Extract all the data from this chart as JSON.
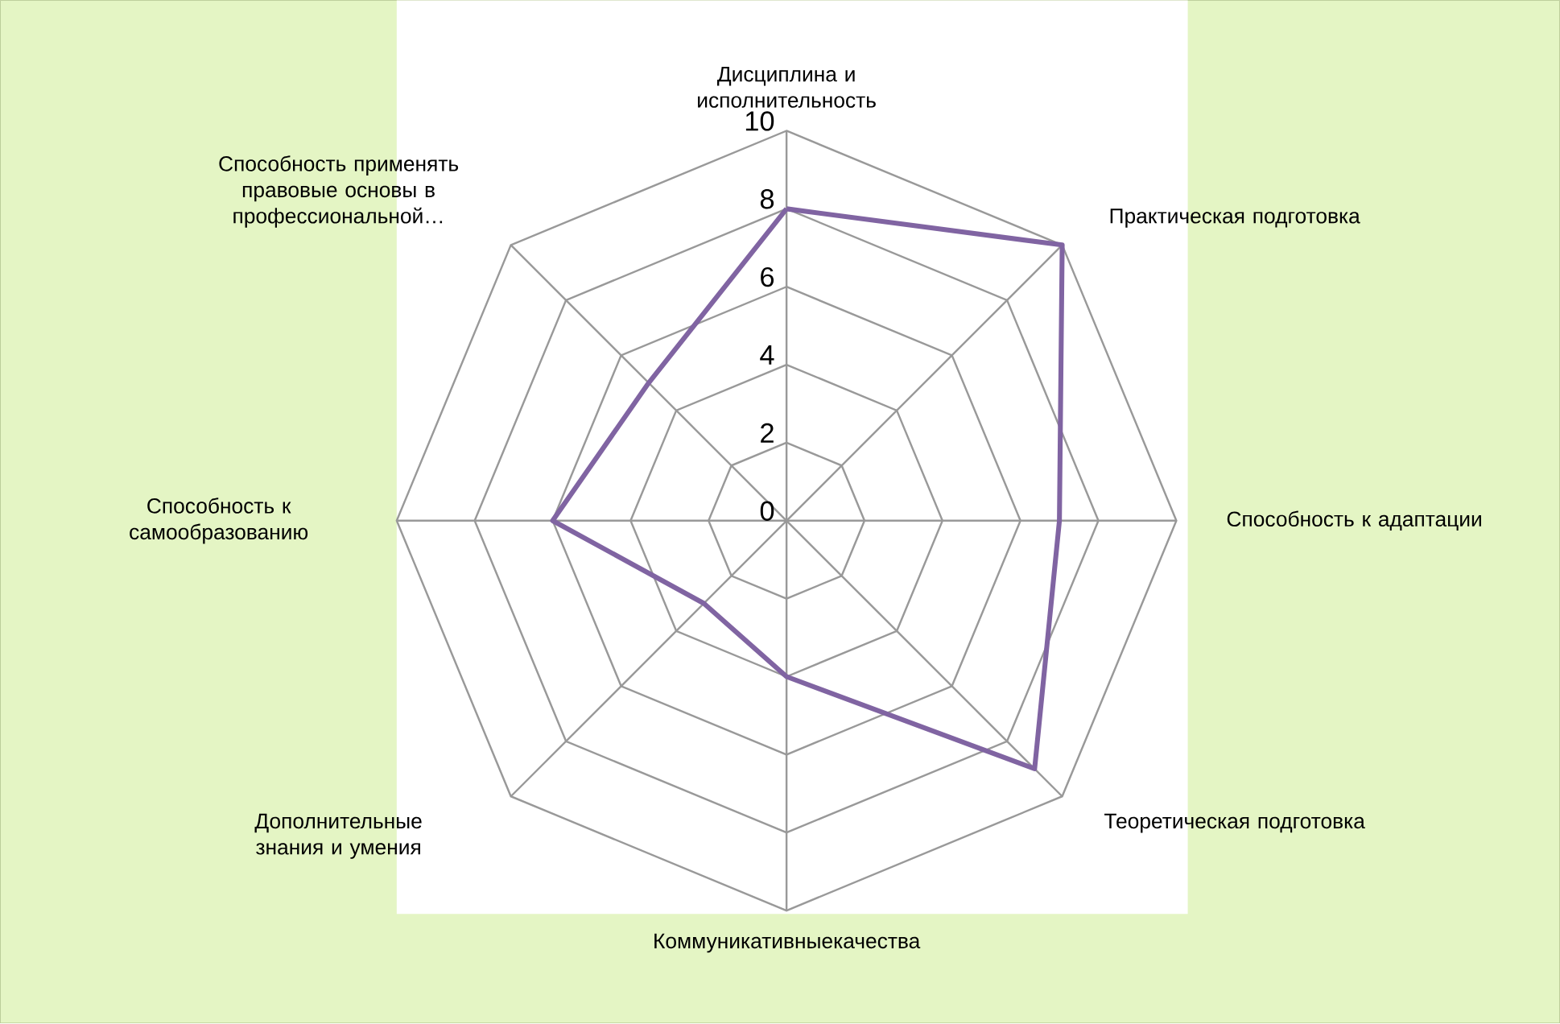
{
  "chart_data": {
    "type": "radar",
    "categories": [
      "Дисциплина и исполнительность",
      "Практическая подготовка",
      "Способность к адаптации",
      "Теоретическая подготовка",
      "Коммуникативныекачества",
      "Дополнительные знания и умения",
      "Способность к самообразованию",
      "Способность применять правовые основы в профессиональной…"
    ],
    "series": [
      {
        "color": "#8064a2",
        "values": [
          8,
          10,
          7,
          9,
          4,
          3,
          6,
          5
        ]
      }
    ],
    "ylim": [
      0,
      10
    ],
    "yticks": [
      0,
      2,
      4,
      6,
      8,
      10
    ],
    "grid": true
  }
}
